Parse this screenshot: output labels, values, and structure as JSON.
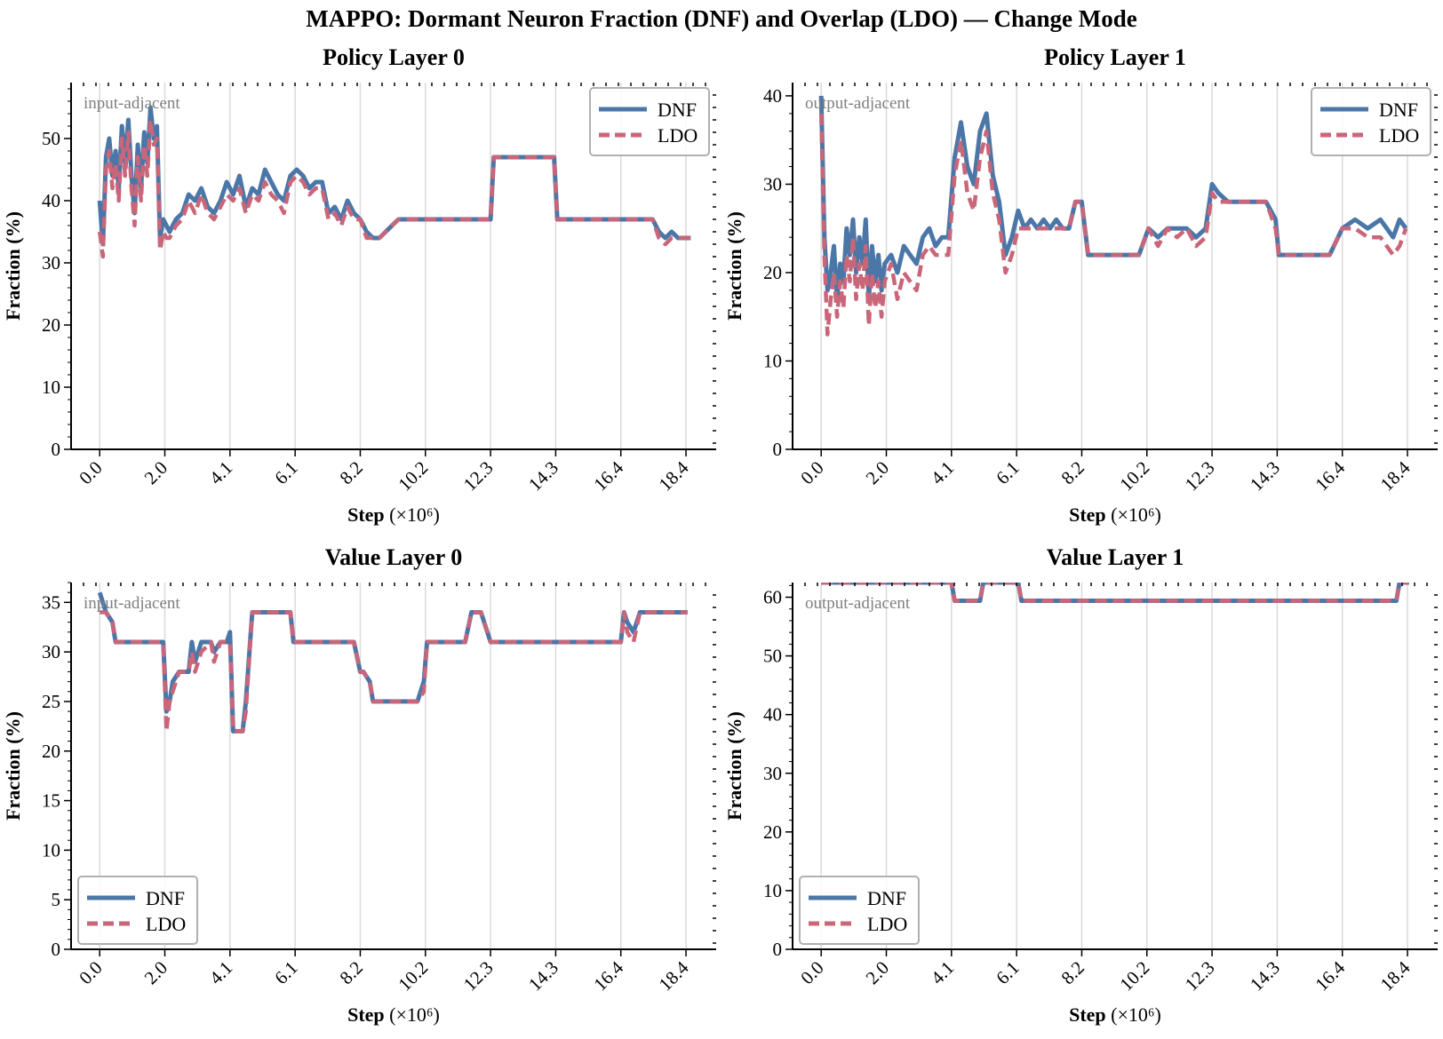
{
  "figure_title": "MAPPO: Dormant Neuron Fraction (DNF) and Overlap (LDO) — Change Mode",
  "colors": {
    "dnf": "#4a76a8",
    "ldo": "#c9667a",
    "grid": "#d9d9d9",
    "annotation": "#7f7f7f"
  },
  "chart_data": [
    {
      "type": "line",
      "title": "Policy Layer 0",
      "annotation": "input-adjacent",
      "xlabel": "Step",
      "xlabel_unit": "(×10⁶)",
      "ylabel": "Fraction (%)",
      "x_ticks": [
        "0.0",
        "2.0",
        "4.1",
        "6.1",
        "8.2",
        "10.2",
        "12.3",
        "14.3",
        "16.4",
        "18.4"
      ],
      "x_tick_values": [
        0.0,
        2.05,
        4.1,
        6.15,
        8.2,
        10.25,
        12.3,
        14.35,
        16.4,
        18.45
      ],
      "xlim": [
        -0.9,
        19.4
      ],
      "ylim": [
        0,
        59
      ],
      "y_ticks": [
        0,
        10,
        20,
        30,
        40,
        50
      ],
      "legend_position": "upper right",
      "grid": "vertical",
      "series": [
        {
          "name": "DNF",
          "style": "solid",
          "x": [
            0.0,
            0.1,
            0.2,
            0.3,
            0.4,
            0.5,
            0.6,
            0.7,
            0.8,
            0.9,
            1.0,
            1.1,
            1.2,
            1.3,
            1.4,
            1.5,
            1.6,
            1.7,
            1.8,
            1.9,
            2.0,
            2.1,
            2.2,
            2.4,
            2.6,
            2.8,
            3.0,
            3.2,
            3.4,
            3.6,
            3.8,
            4.0,
            4.2,
            4.4,
            4.6,
            4.8,
            5.0,
            5.2,
            5.4,
            5.6,
            5.8,
            6.0,
            6.2,
            6.4,
            6.6,
            6.8,
            7.0,
            7.2,
            7.4,
            7.6,
            7.8,
            8.0,
            8.2,
            8.4,
            8.6,
            8.8,
            9.0,
            9.2,
            9.4,
            9.6,
            9.8,
            10.0,
            10.5,
            11.0,
            11.5,
            12.0,
            12.3,
            12.4,
            12.8,
            13.2,
            13.6,
            14.0,
            14.3,
            14.4,
            15.0,
            16.0,
            17.0,
            17.4,
            17.6,
            17.8,
            18.0,
            18.2,
            18.4,
            18.6
          ],
          "y": [
            40,
            33,
            47,
            50,
            44,
            48,
            42,
            52,
            46,
            53,
            44,
            38,
            49,
            42,
            51,
            46,
            55,
            50,
            52,
            34,
            37,
            36,
            35,
            37,
            38,
            41,
            40,
            42,
            39,
            38,
            40,
            43,
            41,
            44,
            39,
            42,
            41,
            45,
            43,
            41,
            40,
            44,
            45,
            44,
            42,
            43,
            43,
            38,
            39,
            37,
            40,
            38,
            37,
            35,
            34,
            34,
            35,
            36,
            37,
            37,
            37,
            37,
            37,
            37,
            37,
            37,
            37,
            47,
            47,
            47,
            47,
            47,
            47,
            37,
            37,
            37,
            37,
            37,
            35,
            34,
            35,
            34,
            34,
            34
          ]
        },
        {
          "name": "LDO",
          "style": "dashed",
          "x": [
            0.0,
            0.1,
            0.2,
            0.3,
            0.4,
            0.5,
            0.6,
            0.7,
            0.8,
            0.9,
            1.0,
            1.1,
            1.2,
            1.3,
            1.4,
            1.5,
            1.6,
            1.7,
            1.8,
            1.9,
            2.0,
            2.1,
            2.2,
            2.4,
            2.6,
            2.8,
            3.0,
            3.2,
            3.4,
            3.6,
            3.8,
            4.0,
            4.2,
            4.4,
            4.6,
            4.8,
            5.0,
            5.2,
            5.4,
            5.6,
            5.8,
            6.0,
            6.2,
            6.4,
            6.6,
            6.8,
            7.0,
            7.2,
            7.4,
            7.6,
            7.8,
            8.0,
            8.2,
            8.4,
            8.6,
            8.8,
            9.0,
            9.2,
            9.4,
            9.6,
            9.8,
            10.0,
            10.5,
            11.0,
            11.5,
            12.0,
            12.3,
            12.4,
            12.8,
            13.2,
            13.6,
            14.0,
            14.3,
            14.4,
            15.0,
            16.0,
            17.0,
            17.4,
            17.6,
            17.8,
            18.0,
            18.2,
            18.4,
            18.6
          ],
          "y": [
            35,
            31,
            45,
            48,
            42,
            46,
            40,
            50,
            44,
            51,
            42,
            36,
            47,
            40,
            49,
            44,
            53,
            49,
            50,
            32,
            35,
            34,
            34,
            36,
            37,
            40,
            38,
            41,
            38,
            37,
            39,
            41,
            40,
            42,
            38,
            41,
            40,
            43,
            41,
            40,
            38,
            43,
            44,
            43,
            41,
            42,
            42,
            37,
            38,
            36,
            39,
            37,
            37,
            34,
            34,
            34,
            35,
            36,
            37,
            37,
            37,
            37,
            37,
            37,
            37,
            37,
            37,
            47,
            47,
            47,
            47,
            47,
            47,
            37,
            37,
            37,
            37,
            37,
            34,
            33,
            34,
            34,
            34,
            34
          ]
        }
      ]
    },
    {
      "type": "line",
      "title": "Policy Layer 1",
      "annotation": "output-adjacent",
      "xlabel": "Step",
      "xlabel_unit": "(×10⁶)",
      "ylabel": "Fraction (%)",
      "x_ticks": [
        "0.0",
        "2.0",
        "4.1",
        "6.1",
        "8.2",
        "10.2",
        "12.3",
        "14.3",
        "16.4",
        "18.4"
      ],
      "x_tick_values": [
        0.0,
        2.05,
        4.1,
        6.15,
        8.2,
        10.25,
        12.3,
        14.35,
        16.4,
        18.45
      ],
      "xlim": [
        -0.9,
        19.4
      ],
      "ylim": [
        0,
        41.5
      ],
      "y_ticks": [
        0,
        10,
        20,
        30,
        40
      ],
      "legend_position": "upper right",
      "grid": "vertical",
      "series": [
        {
          "name": "DNF",
          "style": "solid",
          "x": [
            0.0,
            0.1,
            0.2,
            0.3,
            0.4,
            0.5,
            0.6,
            0.7,
            0.8,
            0.9,
            1.0,
            1.1,
            1.2,
            1.3,
            1.4,
            1.5,
            1.6,
            1.7,
            1.8,
            1.9,
            2.0,
            2.2,
            2.4,
            2.6,
            2.8,
            3.0,
            3.2,
            3.4,
            3.6,
            3.8,
            4.0,
            4.2,
            4.4,
            4.6,
            4.8,
            5.0,
            5.2,
            5.4,
            5.6,
            5.8,
            6.0,
            6.2,
            6.4,
            6.6,
            6.8,
            7.0,
            7.2,
            7.4,
            7.6,
            7.8,
            8.0,
            8.2,
            8.4,
            9.0,
            10.0,
            10.3,
            10.6,
            10.9,
            11.2,
            11.5,
            11.8,
            12.1,
            12.3,
            12.5,
            12.8,
            13.2,
            13.6,
            14.0,
            14.3,
            14.4,
            15.0,
            16.0,
            16.4,
            16.8,
            17.2,
            17.6,
            18.0,
            18.2,
            18.4
          ],
          "y": [
            40,
            24,
            18,
            20,
            23,
            17,
            21,
            19,
            25,
            22,
            26,
            20,
            24,
            21,
            26,
            17,
            23,
            19,
            22,
            18,
            21,
            22,
            20,
            23,
            22,
            21,
            24,
            25,
            23,
            24,
            24,
            33,
            37,
            32,
            30,
            36,
            38,
            31,
            28,
            22,
            24,
            27,
            25,
            26,
            25,
            26,
            25,
            26,
            25,
            25,
            28,
            28,
            22,
            22,
            22,
            25,
            24,
            25,
            25,
            25,
            24,
            25,
            30,
            29,
            28,
            28,
            28,
            28,
            26,
            22,
            22,
            22,
            25,
            26,
            25,
            26,
            24,
            26,
            25
          ]
        },
        {
          "name": "LDO",
          "style": "dashed",
          "x": [
            0.0,
            0.1,
            0.2,
            0.3,
            0.4,
            0.5,
            0.6,
            0.7,
            0.8,
            0.9,
            1.0,
            1.1,
            1.2,
            1.3,
            1.4,
            1.5,
            1.6,
            1.7,
            1.8,
            1.9,
            2.0,
            2.2,
            2.4,
            2.6,
            2.8,
            3.0,
            3.2,
            3.4,
            3.6,
            3.8,
            4.0,
            4.2,
            4.4,
            4.6,
            4.8,
            5.0,
            5.2,
            5.4,
            5.6,
            5.8,
            6.0,
            6.2,
            6.4,
            6.6,
            6.8,
            7.0,
            7.2,
            7.4,
            7.6,
            7.8,
            8.0,
            8.2,
            8.4,
            9.0,
            10.0,
            10.3,
            10.6,
            10.9,
            11.2,
            11.5,
            11.8,
            12.1,
            12.3,
            12.5,
            12.8,
            13.2,
            13.6,
            14.0,
            14.3,
            14.4,
            15.0,
            16.0,
            16.4,
            16.8,
            17.2,
            17.6,
            18.0,
            18.2,
            18.4
          ],
          "y": [
            38,
            22,
            13,
            17,
            20,
            15,
            19,
            16,
            22,
            19,
            24,
            17,
            21,
            18,
            23,
            14,
            20,
            16,
            19,
            15,
            19,
            21,
            17,
            20,
            19,
            18,
            22,
            23,
            22,
            22,
            22,
            31,
            35,
            29,
            27,
            33,
            36,
            29,
            26,
            20,
            22,
            25,
            25,
            25,
            25,
            25,
            25,
            25,
            25,
            25,
            28,
            28,
            22,
            22,
            22,
            25,
            23,
            25,
            24,
            25,
            23,
            24,
            29,
            28,
            28,
            28,
            28,
            28,
            25,
            22,
            22,
            22,
            25,
            25,
            24,
            24,
            22,
            23,
            25
          ]
        }
      ]
    },
    {
      "type": "line",
      "title": "Value Layer 0",
      "annotation": "input-adjacent",
      "xlabel": "Step",
      "xlabel_unit": "(×10⁶)",
      "ylabel": "Fraction (%)",
      "x_ticks": [
        "0.0",
        "2.0",
        "4.1",
        "6.1",
        "8.2",
        "10.2",
        "12.3",
        "14.3",
        "16.4",
        "18.4"
      ],
      "x_tick_values": [
        0.0,
        2.05,
        4.1,
        6.15,
        8.2,
        10.25,
        12.3,
        14.35,
        16.4,
        18.45
      ],
      "xlim": [
        -0.9,
        19.4
      ],
      "ylim": [
        0,
        37
      ],
      "y_ticks": [
        0,
        5,
        10,
        15,
        20,
        25,
        30,
        35
      ],
      "legend_position": "lower left",
      "grid": "vertical",
      "series": [
        {
          "name": "DNF",
          "style": "solid",
          "x": [
            0.0,
            0.2,
            0.4,
            0.5,
            1.0,
            2.0,
            2.1,
            2.2,
            2.3,
            2.5,
            2.8,
            2.9,
            3.0,
            3.2,
            3.5,
            3.6,
            3.8,
            4.0,
            4.1,
            4.2,
            4.3,
            4.5,
            4.6,
            4.8,
            5.0,
            6.0,
            6.1,
            6.2,
            7.0,
            8.0,
            8.2,
            8.3,
            8.5,
            8.6,
            9.0,
            10.0,
            10.2,
            10.3,
            10.5,
            11.0,
            11.5,
            11.7,
            12.0,
            12.3,
            12.4,
            13.0,
            14.0,
            15.0,
            16.0,
            16.4,
            16.5,
            16.6,
            16.8,
            17.0,
            18.0,
            18.5
          ],
          "y": [
            36,
            34,
            33,
            31,
            31,
            31,
            24,
            25,
            27,
            28,
            28,
            31,
            29,
            31,
            31,
            30,
            31,
            31,
            32,
            22,
            22,
            22,
            25,
            34,
            34,
            34,
            31,
            31,
            31,
            31,
            28,
            28,
            27,
            25,
            25,
            25,
            27,
            31,
            31,
            31,
            31,
            34,
            34,
            31,
            31,
            31,
            31,
            31,
            31,
            31,
            34,
            33,
            32,
            34,
            34,
            34
          ]
        },
        {
          "name": "LDO",
          "style": "dashed",
          "x": [
            0.0,
            0.2,
            0.4,
            0.5,
            1.0,
            2.0,
            2.1,
            2.2,
            2.3,
            2.5,
            2.8,
            2.9,
            3.0,
            3.2,
            3.5,
            3.6,
            3.8,
            4.0,
            4.1,
            4.2,
            4.3,
            4.5,
            4.6,
            4.8,
            5.0,
            6.0,
            6.1,
            6.2,
            7.0,
            8.0,
            8.2,
            8.3,
            8.5,
            8.6,
            9.0,
            10.0,
            10.2,
            10.3,
            10.5,
            11.0,
            11.5,
            11.7,
            12.0,
            12.3,
            12.4,
            13.0,
            14.0,
            15.0,
            16.0,
            16.4,
            16.5,
            16.6,
            16.8,
            17.0,
            18.0,
            18.5
          ],
          "y": [
            34,
            34,
            33,
            31,
            31,
            31,
            22,
            25,
            26,
            28,
            28,
            30,
            28,
            30,
            31,
            29,
            31,
            31,
            31,
            22,
            22,
            22,
            24,
            34,
            34,
            34,
            31,
            31,
            31,
            31,
            28,
            28,
            27,
            25,
            25,
            25,
            26,
            31,
            31,
            31,
            31,
            34,
            34,
            31,
            31,
            31,
            31,
            31,
            31,
            31,
            34,
            32,
            31,
            34,
            34,
            34
          ]
        }
      ]
    },
    {
      "type": "line",
      "title": "Value Layer 1",
      "annotation": "output-adjacent",
      "xlabel": "Step",
      "xlabel_unit": "(×10⁶)",
      "ylabel": "Fraction (%)",
      "x_ticks": [
        "0.0",
        "2.0",
        "4.1",
        "6.1",
        "8.2",
        "10.2",
        "12.3",
        "14.3",
        "16.4",
        "18.4"
      ],
      "x_tick_values": [
        0.0,
        2.05,
        4.1,
        6.15,
        8.2,
        10.25,
        12.3,
        14.35,
        16.4,
        18.45
      ],
      "xlim": [
        -0.9,
        19.4
      ],
      "ylim": [
        0,
        62.5
      ],
      "y_ticks": [
        0,
        10,
        20,
        30,
        40,
        50,
        60
      ],
      "legend_position": "lower left",
      "grid": "vertical",
      "series": [
        {
          "name": "DNF",
          "style": "solid",
          "x": [
            0.0,
            4.1,
            4.2,
            5.0,
            5.1,
            6.2,
            6.3,
            18.1,
            18.2,
            18.5
          ],
          "y": [
            62.5,
            62.5,
            59.4,
            59.4,
            62.5,
            62.5,
            59.4,
            59.4,
            62.5,
            62.5
          ]
        },
        {
          "name": "LDO",
          "style": "dashed",
          "x": [
            0.0,
            4.1,
            4.2,
            5.0,
            5.1,
            6.2,
            6.3,
            18.1,
            18.2,
            18.5
          ],
          "y": [
            62.5,
            62.5,
            59.4,
            59.4,
            62.5,
            62.5,
            59.4,
            59.4,
            62.5,
            62.5
          ]
        }
      ]
    }
  ]
}
